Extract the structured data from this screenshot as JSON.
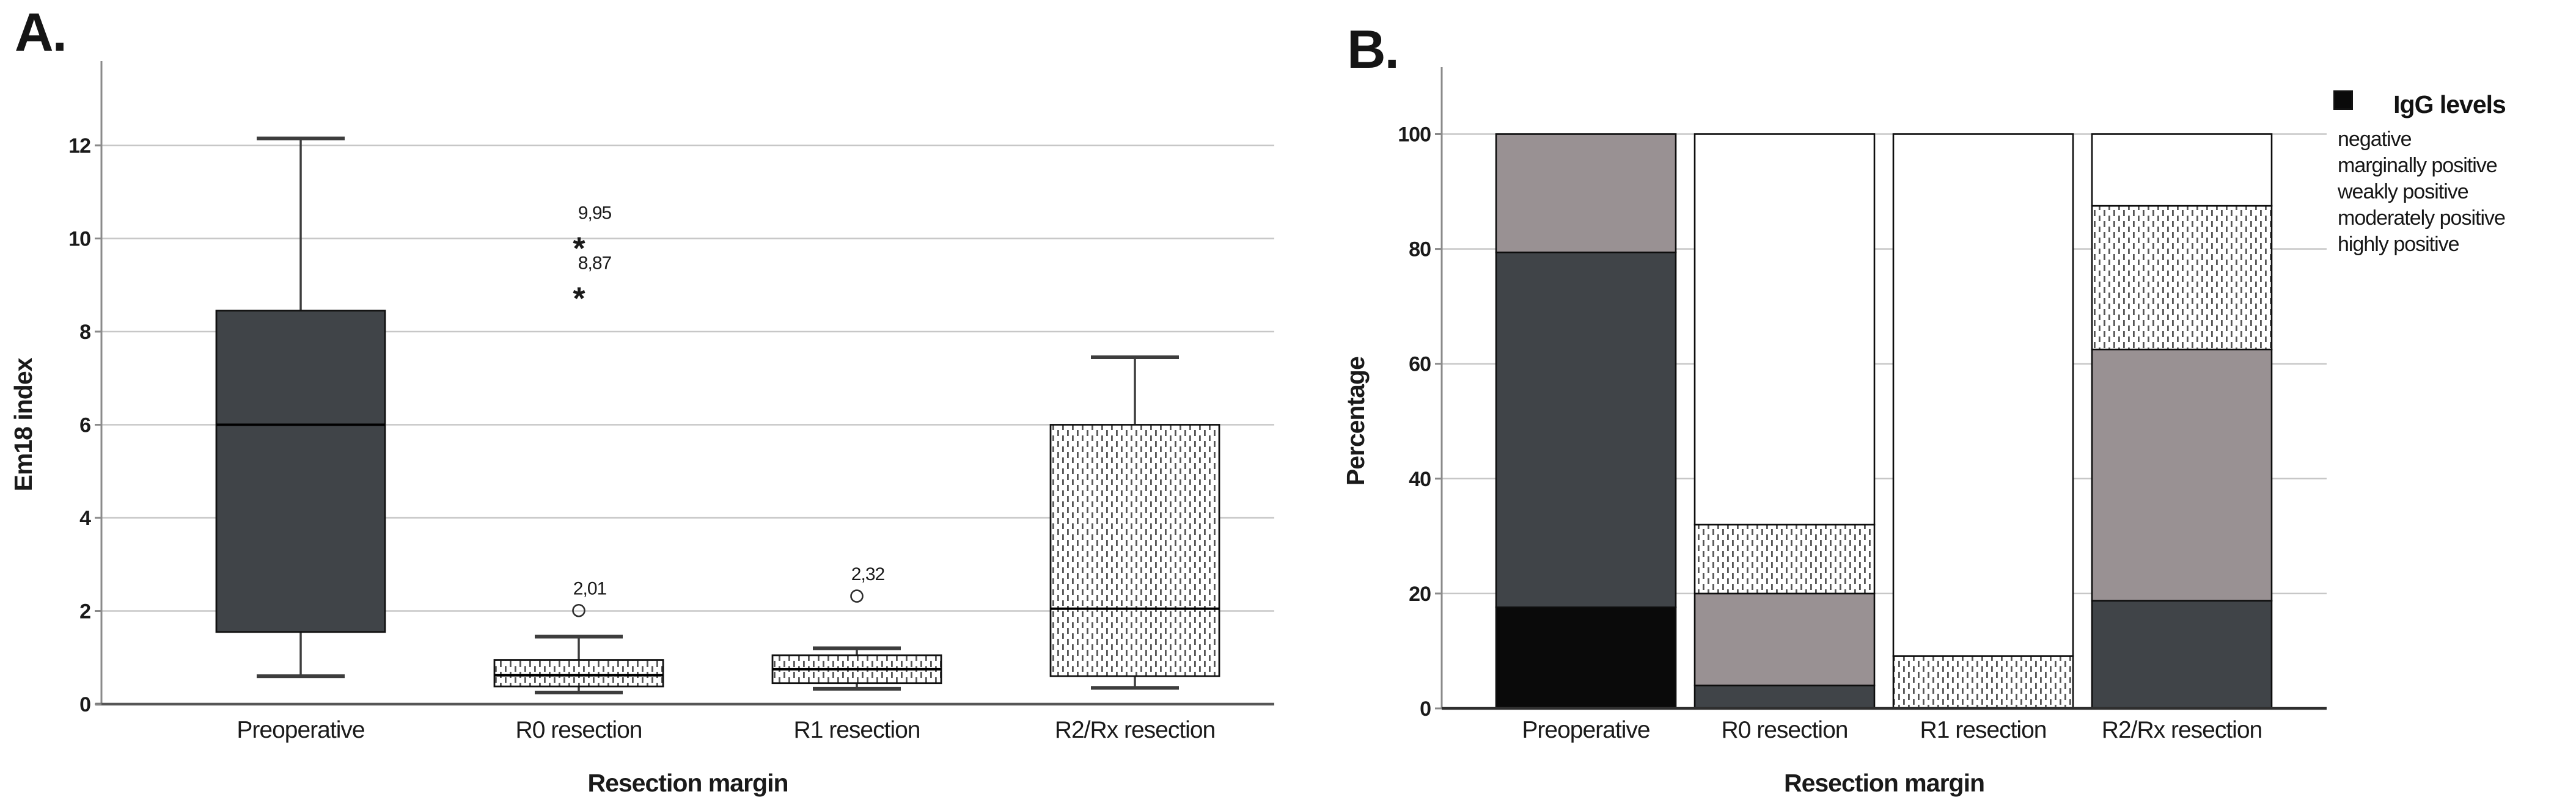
{
  "figure": {
    "panel_a_label": "A.",
    "panel_b_label": "B."
  },
  "colors": {
    "dark": "#404448",
    "gray": "#999193",
    "black": "#0a0a0a",
    "white": "#ffffff",
    "pattern_dash": "#565656",
    "grid": "#c7c7c7",
    "axis": "#8a8a8a",
    "baseline_a": "#565656",
    "baseline_b": "#2f2f2f",
    "box_stroke": "#111111",
    "whisker": "#3d3d3d",
    "text": "#1a1a1a"
  },
  "chart_data": [
    {
      "id": "A",
      "type": "boxplot",
      "xlabel": "Resection margin",
      "ylabel": "Em18 index",
      "ylim": [
        0,
        13.8
      ],
      "yticks": [
        0,
        2,
        4,
        6,
        8,
        10,
        12
      ],
      "grid": true,
      "categories": [
        "Preoperative",
        "R0 resection",
        "R1 resection",
        "R2/Rx resection"
      ],
      "boxes": [
        {
          "category": "Preoperative",
          "whisker_low": 0.6,
          "q1": 1.55,
          "median": 6.0,
          "q3": 8.45,
          "whisker_high": 12.15,
          "fill": "dark",
          "outliers": [],
          "extremes": []
        },
        {
          "category": "R0 resection",
          "whisker_low": 0.25,
          "q1": 0.38,
          "median": 0.62,
          "q3": 0.95,
          "whisker_high": 1.45,
          "fill": "dotted",
          "outliers": [
            {
              "value": 2.01,
              "label": "2,01"
            }
          ],
          "extremes": [
            {
              "value": 9.95,
              "label": "9,95"
            },
            {
              "value": 8.87,
              "label": "8,87"
            }
          ]
        },
        {
          "category": "R1 resection",
          "whisker_low": 0.33,
          "q1": 0.45,
          "median": 0.75,
          "q3": 1.05,
          "whisker_high": 1.2,
          "fill": "dotted",
          "outliers": [
            {
              "value": 2.32,
              "label": "2,32"
            }
          ],
          "extremes": []
        },
        {
          "category": "R2/Rx resection",
          "whisker_low": 0.35,
          "q1": 0.6,
          "median": 2.05,
          "q3": 6.0,
          "whisker_high": 7.45,
          "fill": "dotted",
          "outliers": [],
          "extremes": []
        }
      ]
    },
    {
      "id": "B",
      "type": "bar",
      "stacked": true,
      "xlabel": "Resection margin",
      "ylabel": "Percentage",
      "ylim": [
        0,
        110
      ],
      "yticks": [
        0,
        20,
        40,
        60,
        80,
        100
      ],
      "grid": true,
      "legend_title": "IgG levels",
      "legend_position": "right",
      "categories": [
        "Preoperative",
        "R0 resection",
        "R1 resection",
        "R2/Rx resection"
      ],
      "series": [
        {
          "name": "highly positive",
          "fill": "black",
          "values": [
            17.6,
            0,
            0,
            0
          ]
        },
        {
          "name": "moderately positive",
          "fill": "dark",
          "values": [
            61.8,
            4,
            0,
            18.75
          ]
        },
        {
          "name": "weakly positive",
          "fill": "gray",
          "values": [
            20.6,
            16,
            0,
            43.75
          ]
        },
        {
          "name": "marginally positive",
          "fill": "dotted",
          "values": [
            0,
            12,
            9.1,
            25
          ]
        },
        {
          "name": "negative",
          "fill": "white",
          "values": [
            0,
            68,
            90.9,
            12.5
          ]
        }
      ]
    }
  ],
  "legend": {
    "title": "IgG levels",
    "items": [
      {
        "label": "negative",
        "fill": "white"
      },
      {
        "label": "marginally positive",
        "fill": "dotted"
      },
      {
        "label": "weakly positive",
        "fill": "gray"
      },
      {
        "label": "moderately positive",
        "fill": "dark"
      },
      {
        "label": "highly positive",
        "fill": "black"
      }
    ]
  }
}
